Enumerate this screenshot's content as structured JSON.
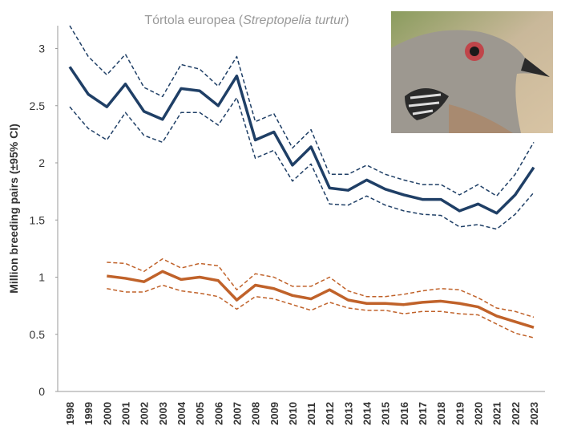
{
  "chart_data": {
    "type": "line",
    "title": {
      "text": "Tórtola europea (",
      "species": "Streptopelia turtur",
      "close": ")"
    },
    "y_label": "Million breeding pairs (±95% CI)",
    "categories": [
      "1998",
      "1999",
      "2000",
      "2001",
      "2002",
      "2003",
      "2004",
      "2005",
      "2006",
      "2007",
      "2008",
      "2009",
      "2010",
      "2011",
      "2012",
      "2013",
      "2014",
      "2015",
      "2016",
      "2017",
      "2018",
      "2019",
      "2020",
      "2021",
      "2022",
      "2023"
    ],
    "ylim": [
      0,
      3.2
    ],
    "yticks": [
      0,
      0.5,
      1,
      1.5,
      2,
      2.5,
      3
    ],
    "grid": false,
    "series": [
      {
        "color": "#1f3f66",
        "dash": false,
        "values": [
          2.84,
          2.6,
          2.49,
          2.69,
          2.45,
          2.38,
          2.65,
          2.63,
          2.5,
          2.76,
          2.2,
          2.27,
          1.98,
          2.14,
          1.78,
          1.76,
          1.85,
          1.77,
          1.72,
          1.68,
          1.68,
          1.58,
          1.64,
          1.56,
          1.72,
          1.96
        ]
      },
      {
        "color": "#1f3f66",
        "dash": true,
        "values": [
          3.2,
          2.93,
          2.77,
          2.95,
          2.66,
          2.58,
          2.86,
          2.82,
          2.67,
          2.93,
          2.36,
          2.43,
          2.13,
          2.29,
          1.9,
          1.9,
          1.98,
          1.9,
          1.85,
          1.81,
          1.81,
          1.72,
          1.81,
          1.71,
          1.9,
          2.18
        ]
      },
      {
        "color": "#1f3f66",
        "dash": true,
        "values": [
          2.49,
          2.3,
          2.2,
          2.44,
          2.24,
          2.18,
          2.44,
          2.44,
          2.33,
          2.57,
          2.04,
          2.11,
          1.84,
          1.99,
          1.64,
          1.63,
          1.71,
          1.63,
          1.58,
          1.55,
          1.54,
          1.44,
          1.46,
          1.42,
          1.55,
          1.74
        ]
      },
      {
        "color": "#c0622a",
        "dash": false,
        "values": [
          null,
          null,
          1.01,
          0.99,
          0.96,
          1.05,
          0.98,
          1.0,
          0.97,
          0.8,
          0.93,
          0.9,
          0.84,
          0.81,
          0.89,
          0.8,
          0.77,
          0.77,
          0.76,
          0.78,
          0.79,
          0.77,
          0.74,
          0.66,
          0.61,
          0.56
        ]
      },
      {
        "color": "#c0622a",
        "dash": true,
        "values": [
          null,
          null,
          1.13,
          1.12,
          1.05,
          1.16,
          1.08,
          1.12,
          1.1,
          0.89,
          1.03,
          1.0,
          0.92,
          0.92,
          1.0,
          0.88,
          0.83,
          0.83,
          0.85,
          0.88,
          0.9,
          0.89,
          0.82,
          0.73,
          0.7,
          0.65
        ]
      },
      {
        "color": "#c0622a",
        "dash": true,
        "values": [
          null,
          null,
          0.9,
          0.87,
          0.87,
          0.93,
          0.88,
          0.86,
          0.83,
          0.72,
          0.83,
          0.81,
          0.76,
          0.71,
          0.78,
          0.73,
          0.71,
          0.71,
          0.68,
          0.7,
          0.7,
          0.68,
          0.67,
          0.59,
          0.51,
          0.47
        ]
      }
    ]
  }
}
